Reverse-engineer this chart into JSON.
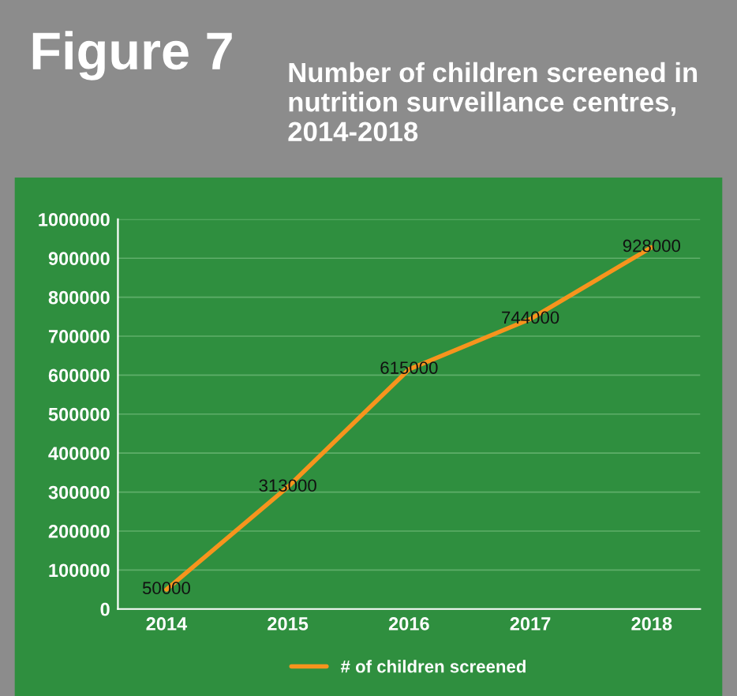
{
  "chart_data": {
    "type": "line",
    "title": "Figure 7",
    "subtitle": "Number of children screened in nutrition surveillance centres, 2014-2018",
    "categories": [
      "2014",
      "2015",
      "2016",
      "2017",
      "2018"
    ],
    "series": [
      {
        "name": "# of children screened",
        "color": "#f7941d",
        "values": [
          50000,
          313000,
          615000,
          744000,
          928000
        ]
      }
    ],
    "ylim": [
      0,
      1000000
    ],
    "yticks": [
      0,
      100000,
      200000,
      300000,
      400000,
      500000,
      600000,
      700000,
      800000,
      900000,
      1000000
    ],
    "grid": "y",
    "legend": "bottom",
    "data_labels": true,
    "line_style": "solid"
  }
}
